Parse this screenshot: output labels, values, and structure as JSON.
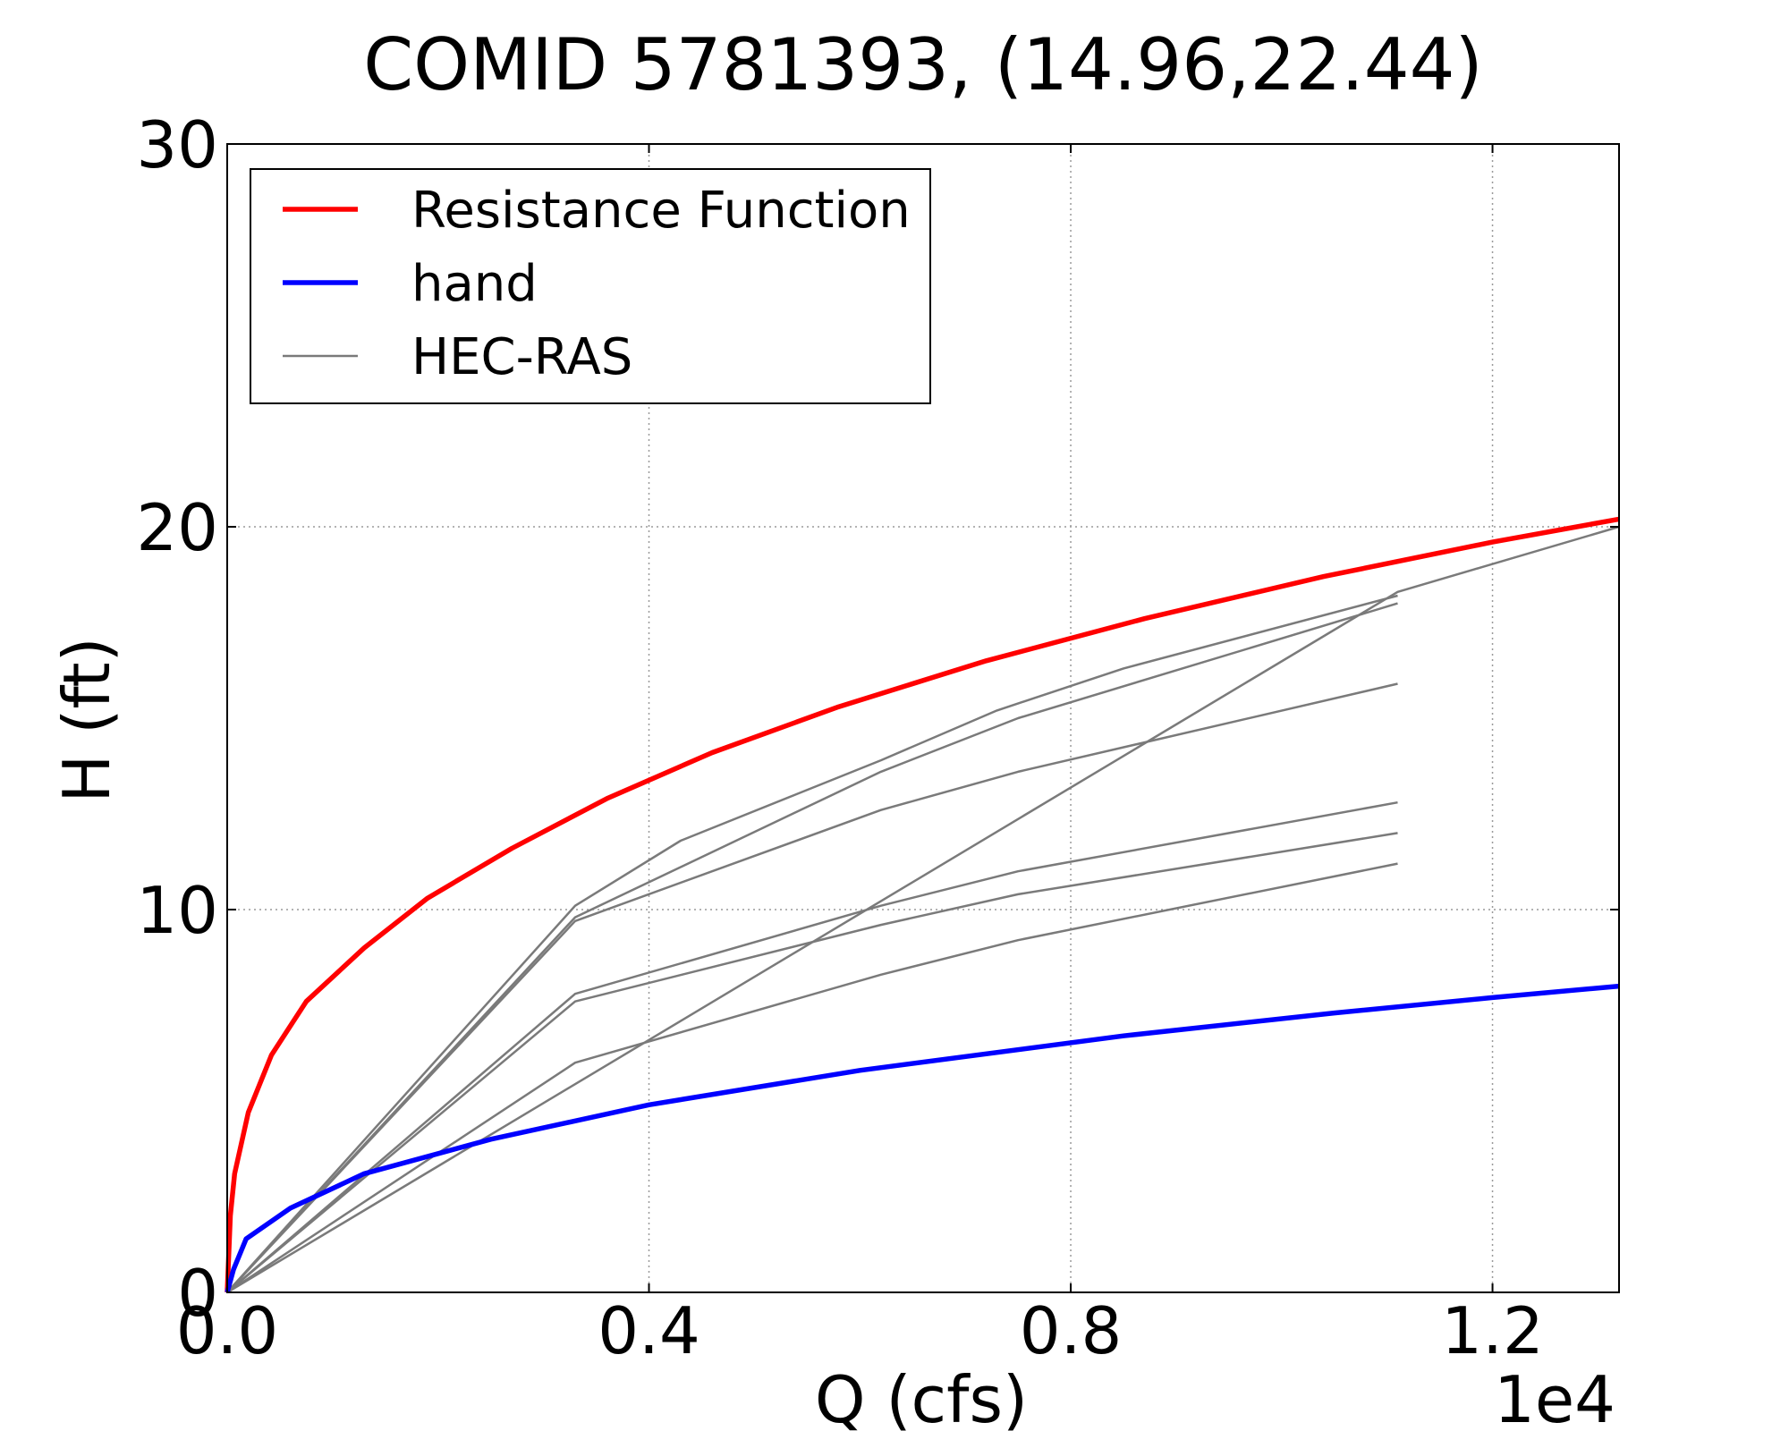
{
  "chart_data": {
    "type": "line",
    "title": "COMID 5781393, (14.96,22.44)",
    "xlabel": "Q (cfs)",
    "ylabel": "H (ft)",
    "x_offset_text": "1e4",
    "xlim": [
      0,
      13200
    ],
    "ylim": [
      0,
      30
    ],
    "x_ticks": [
      0,
      4000,
      8000,
      12000
    ],
    "x_tick_labels": [
      "0.0",
      "0.4",
      "0.8",
      "1.2"
    ],
    "y_ticks": [
      0,
      10,
      20,
      30
    ],
    "y_tick_labels": [
      "0",
      "10",
      "20",
      "30"
    ],
    "grid": true,
    "legend_position": "top-left",
    "series": [
      {
        "name": "Resistance Function",
        "color": "#ff0000",
        "x": [
          0,
          30,
          70,
          200,
          420,
          750,
          1300,
          1900,
          2700,
          3600,
          4600,
          5800,
          7200,
          8700,
          10400,
          12000,
          13200
        ],
        "y": [
          0,
          2,
          3.1,
          4.7,
          6.2,
          7.6,
          9.0,
          10.3,
          11.6,
          12.9,
          14.1,
          15.3,
          16.5,
          17.6,
          18.7,
          19.6,
          20.2
        ]
      },
      {
        "name": "hand",
        "color": "#0000ff",
        "x": [
          0,
          60,
          180,
          600,
          1300,
          2500,
          4000,
          6000,
          8500,
          10500,
          12000,
          13200
        ],
        "y": [
          0,
          0.6,
          1.4,
          2.2,
          3.1,
          4.0,
          4.9,
          5.8,
          6.7,
          7.3,
          7.7,
          8.0
        ]
      },
      {
        "name": "HEC-RAS",
        "color": "#7a7a7a",
        "x": [
          0,
          3300,
          4300,
          6200,
          7300,
          8500,
          11100
        ],
        "y": [
          0,
          10.1,
          11.8,
          13.9,
          15.2,
          16.3,
          18.2
        ]
      },
      {
        "name": "",
        "color": "#7a7a7a",
        "x": [
          0,
          3300,
          6200,
          7500,
          11100
        ],
        "y": [
          0,
          9.8,
          13.6,
          15.0,
          18.0
        ]
      },
      {
        "name": "",
        "color": "#7a7a7a",
        "x": [
          0,
          3300,
          6200,
          7500,
          11100
        ],
        "y": [
          0,
          9.7,
          12.6,
          13.6,
          15.9
        ]
      },
      {
        "name": "",
        "color": "#7a7a7a",
        "x": [
          0,
          3300,
          6200,
          7500,
          11100
        ],
        "y": [
          0,
          7.8,
          10.1,
          11.0,
          12.8
        ]
      },
      {
        "name": "",
        "color": "#7a7a7a",
        "x": [
          0,
          3300,
          6200,
          7500,
          11100
        ],
        "y": [
          0,
          7.6,
          9.6,
          10.4,
          12.0
        ]
      },
      {
        "name": "",
        "color": "#7a7a7a",
        "x": [
          0,
          3300,
          6200,
          7500,
          11100
        ],
        "y": [
          0,
          6.0,
          8.3,
          9.2,
          11.2
        ]
      },
      {
        "name": "",
        "color": "#7a7a7a",
        "x": [
          0,
          11100,
          13200
        ],
        "y": [
          0,
          18.3,
          20.0
        ]
      }
    ],
    "legend": [
      {
        "label": "Resistance Function",
        "color": "#ff0000",
        "width": "thick"
      },
      {
        "label": "hand",
        "color": "#0000ff",
        "width": "thick"
      },
      {
        "label": "HEC-RAS",
        "color": "#7a7a7a",
        "width": "thin"
      }
    ]
  }
}
